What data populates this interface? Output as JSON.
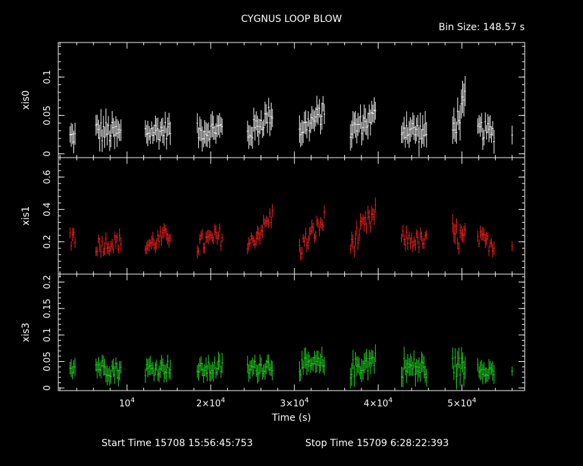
{
  "chart_data": [
    {
      "type": "scatter",
      "title": "CYGNUS LOOP BLOW",
      "bin_size_label": "Bin Size: 148.57 s",
      "ylabel": "xis0",
      "ylim": [
        -0.005,
        0.145
      ],
      "yticks": [
        {
          "v": 0,
          "label": "0"
        },
        {
          "v": 0.05,
          "label": "0.05"
        },
        {
          "v": 0.1,
          "label": "0.1"
        }
      ],
      "grid": false,
      "series": [
        {
          "color": "#ffffff",
          "segments": [
            {
              "t0": 3200,
              "t1": 3800,
              "base": 0.022,
              "slope": 0.0,
              "amp": 0.01,
              "err": 0.012
            },
            {
              "t0": 6300,
              "t1": 9300,
              "base": 0.03,
              "slope": -0.005,
              "amp": 0.015,
              "err": 0.015
            },
            {
              "t0": 12200,
              "t1": 15300,
              "base": 0.028,
              "slope": 0.004,
              "amp": 0.012,
              "err": 0.013
            },
            {
              "t0": 18400,
              "t1": 21500,
              "base": 0.028,
              "slope": 0.006,
              "amp": 0.012,
              "err": 0.013
            },
            {
              "t0": 24400,
              "t1": 27500,
              "base": 0.025,
              "slope": 0.03,
              "amp": 0.013,
              "err": 0.014
            },
            {
              "t0": 30600,
              "t1": 33700,
              "base": 0.03,
              "slope": 0.025,
              "amp": 0.013,
              "err": 0.014
            },
            {
              "t0": 36700,
              "t1": 39800,
              "base": 0.03,
              "slope": 0.02,
              "amp": 0.013,
              "err": 0.014
            },
            {
              "t0": 42800,
              "t1": 45900,
              "base": 0.035,
              "slope": -0.01,
              "amp": 0.014,
              "err": 0.015
            },
            {
              "t0": 48900,
              "t1": 50500,
              "base": 0.03,
              "slope": 0.04,
              "amp": 0.015,
              "err": 0.018
            },
            {
              "t0": 51900,
              "t1": 53900,
              "base": 0.032,
              "slope": -0.005,
              "amp": 0.012,
              "err": 0.013
            },
            {
              "t0": 56000,
              "t1": 56100,
              "base": 0.025,
              "slope": 0.0,
              "amp": 0.003,
              "err": 0.01
            }
          ]
        }
      ]
    },
    {
      "type": "scatter",
      "ylabel": "xis1",
      "ylim": [
        0.0,
        0.72
      ],
      "yticks": [
        {
          "v": 0.2,
          "label": "0.2"
        },
        {
          "v": 0.4,
          "label": "0.4"
        },
        {
          "v": 0.6,
          "label": "0.6"
        }
      ],
      "grid": false,
      "series": [
        {
          "color": "#ff2020",
          "segments": [
            {
              "t0": 3200,
              "t1": 3800,
              "base": 0.23,
              "slope": 0.0,
              "amp": 0.08,
              "err": 0.04
            },
            {
              "t0": 6300,
              "t1": 9300,
              "base": 0.18,
              "slope": 0.02,
              "amp": 0.05,
              "err": 0.035
            },
            {
              "t0": 12200,
              "t1": 15300,
              "base": 0.17,
              "slope": 0.08,
              "amp": 0.05,
              "err": 0.035
            },
            {
              "t0": 18400,
              "t1": 21500,
              "base": 0.18,
              "slope": 0.06,
              "amp": 0.06,
              "err": 0.035
            },
            {
              "t0": 24400,
              "t1": 27500,
              "base": 0.17,
              "slope": 0.2,
              "amp": 0.05,
              "err": 0.035
            },
            {
              "t0": 30600,
              "t1": 33700,
              "base": 0.16,
              "slope": 0.18,
              "amp": 0.06,
              "err": 0.035
            },
            {
              "t0": 36700,
              "t1": 39800,
              "base": 0.18,
              "slope": 0.2,
              "amp": 0.07,
              "err": 0.04
            },
            {
              "t0": 42800,
              "t1": 45900,
              "base": 0.22,
              "slope": -0.02,
              "amp": 0.05,
              "err": 0.035
            },
            {
              "t0": 48900,
              "t1": 50500,
              "base": 0.25,
              "slope": -0.05,
              "amp": 0.08,
              "err": 0.05
            },
            {
              "t0": 51900,
              "t1": 53900,
              "base": 0.22,
              "slope": -0.04,
              "amp": 0.05,
              "err": 0.035
            },
            {
              "t0": 56000,
              "t1": 56100,
              "base": 0.18,
              "slope": 0.0,
              "amp": 0.01,
              "err": 0.03
            }
          ]
        }
      ]
    },
    {
      "type": "scatter",
      "ylabel": "xis3",
      "xlabel": "Time (s)",
      "ylim": [
        -0.005,
        0.215
      ],
      "yticks": [
        {
          "v": 0,
          "label": "0"
        },
        {
          "v": 0.05,
          "label": "0.05"
        },
        {
          "v": 0.1,
          "label": "0.1"
        },
        {
          "v": 0.15,
          "label": "0.15"
        },
        {
          "v": 0.2,
          "label": "0.2"
        }
      ],
      "grid": false,
      "series": [
        {
          "color": "#20e020",
          "segments": [
            {
              "t0": 3200,
              "t1": 3800,
              "base": 0.04,
              "slope": 0.0,
              "amp": 0.012,
              "err": 0.015
            },
            {
              "t0": 6300,
              "t1": 9300,
              "base": 0.042,
              "slope": -0.01,
              "amp": 0.015,
              "err": 0.015
            },
            {
              "t0": 12200,
              "t1": 15300,
              "base": 0.035,
              "slope": 0.005,
              "amp": 0.013,
              "err": 0.015
            },
            {
              "t0": 18400,
              "t1": 21500,
              "base": 0.032,
              "slope": 0.008,
              "amp": 0.014,
              "err": 0.015
            },
            {
              "t0": 24400,
              "t1": 27500,
              "base": 0.035,
              "slope": 0.01,
              "amp": 0.014,
              "err": 0.015
            },
            {
              "t0": 30600,
              "t1": 33700,
              "base": 0.04,
              "slope": 0.005,
              "amp": 0.016,
              "err": 0.016
            },
            {
              "t0": 36700,
              "t1": 39800,
              "base": 0.035,
              "slope": 0.02,
              "amp": 0.018,
              "err": 0.017
            },
            {
              "t0": 42800,
              "t1": 45900,
              "base": 0.04,
              "slope": -0.005,
              "amp": 0.02,
              "err": 0.018
            },
            {
              "t0": 48900,
              "t1": 50500,
              "base": 0.04,
              "slope": 0.0,
              "amp": 0.02,
              "err": 0.02
            },
            {
              "t0": 51900,
              "t1": 53900,
              "base": 0.04,
              "slope": -0.01,
              "amp": 0.012,
              "err": 0.015
            },
            {
              "t0": 56000,
              "t1": 56100,
              "base": 0.03,
              "slope": 0.0,
              "amp": 0.005,
              "err": 0.012
            }
          ]
        }
      ]
    }
  ],
  "x_axis": {
    "label": "Time (s)",
    "range": [
      1800,
      57500
    ],
    "ticks": [
      {
        "v": 10000,
        "mant": "10",
        "exp": "4"
      },
      {
        "v": 20000,
        "mant": "2×10",
        "exp": "4"
      },
      {
        "v": 30000,
        "mant": "3×10",
        "exp": "4"
      },
      {
        "v": 40000,
        "mant": "4×10",
        "exp": "4"
      },
      {
        "v": 50000,
        "mant": "5×10",
        "exp": "4"
      }
    ]
  },
  "footer": {
    "start_time": "Start Time 15708 15:56:45:753",
    "stop_time": "Stop Time 15709  6:28:22:393"
  }
}
